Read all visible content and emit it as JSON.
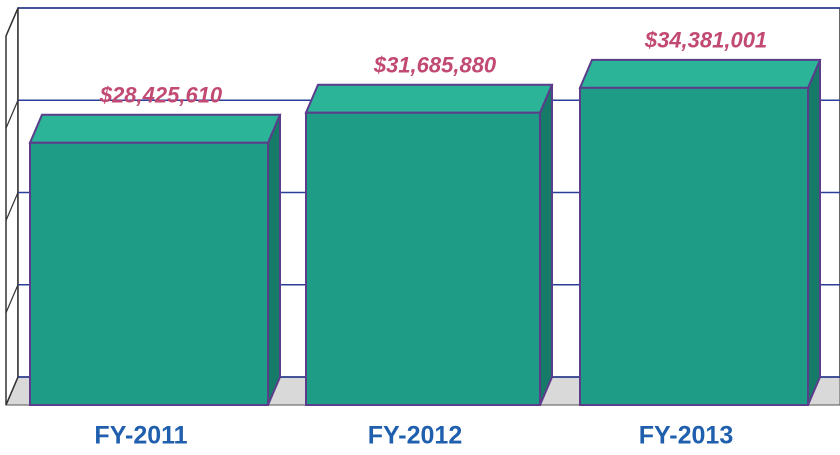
{
  "chart_data": {
    "type": "bar3d",
    "categories": [
      "FY-2011",
      "FY-2012",
      "FY-2013"
    ],
    "values": [
      28425610,
      31685880,
      34381001
    ],
    "value_labels": [
      "$28,425,610",
      "$31,685,880",
      "$34,381,001"
    ],
    "color": "#1f9c86",
    "ylim": [
      0,
      40000000
    ],
    "yticks": [
      0,
      10000000,
      20000000,
      30000000,
      40000000
    ],
    "grid": true
  }
}
